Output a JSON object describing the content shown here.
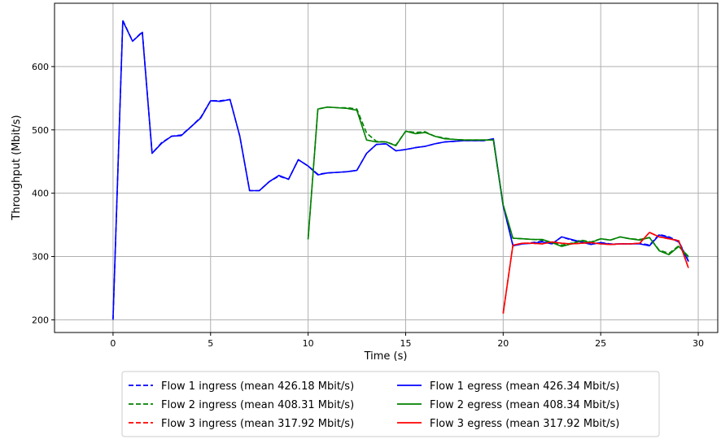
{
  "chart_data": {
    "type": "line",
    "title": "",
    "xlabel": "Time (s)",
    "ylabel": "Throughput (Mbit/s)",
    "xlim": [
      -3,
      31
    ],
    "ylim": [
      180,
      700
    ],
    "xticks": [
      0,
      5,
      10,
      15,
      20,
      25,
      30
    ],
    "yticks": [
      200,
      300,
      400,
      500,
      600
    ],
    "xtick_labels": [
      "0",
      "5",
      "10",
      "15",
      "20",
      "25",
      "30"
    ],
    "ytick_labels": [
      "200",
      "300",
      "400",
      "500",
      "600"
    ],
    "grid": true,
    "legend_placement": "below",
    "series": [
      {
        "name": "Flow 1 ingress (mean 426.18 Mbit/s)",
        "color": "#0000ff",
        "dashed": true,
        "x": [
          0,
          0.5,
          1.0,
          1.5,
          2.0,
          2.5,
          3.0,
          3.5,
          4.0,
          4.5,
          5.0,
          5.5,
          6.0,
          6.5,
          7.0,
          7.5,
          8.0,
          8.5,
          9.0,
          9.5,
          10.0,
          10.5,
          11.0,
          11.5,
          12.0,
          12.5,
          13.0,
          13.5,
          14.0,
          14.5,
          15.0,
          15.5,
          16.0,
          16.5,
          17.0,
          17.5,
          18.0,
          18.5,
          19.0,
          19.5,
          20.0,
          20.5,
          21.0,
          21.5,
          22.0,
          22.5,
          23.0,
          23.5,
          24.0,
          24.5,
          25.0,
          25.5,
          26.0,
          26.5,
          27.0,
          27.5,
          28.0,
          28.5,
          29.0,
          29.5
        ],
        "y": [
          200,
          673,
          640,
          655,
          463,
          480,
          490,
          492,
          505,
          520,
          546,
          546,
          548,
          490,
          404,
          404,
          418,
          427,
          422,
          453,
          443,
          430,
          432,
          433,
          434,
          436,
          463,
          477,
          478,
          467,
          469,
          472,
          474,
          478,
          481,
          482,
          483,
          483,
          483,
          485,
          380,
          318,
          320,
          322,
          324,
          320,
          331,
          326,
          323,
          320,
          322,
          320,
          320,
          320,
          321,
          318,
          335,
          331,
          324,
          293
        ]
      },
      {
        "name": "Flow 2 ingress (mean 408.31 Mbit/s)",
        "color": "#008000",
        "dashed": true,
        "x": [
          10.0,
          10.5,
          11.0,
          11.5,
          12.0,
          12.5,
          13.0,
          13.5,
          14.0,
          14.5,
          15.0,
          15.5,
          16.0,
          16.5,
          17.0,
          17.5,
          18.0,
          18.5,
          19.0,
          19.5,
          20.0,
          20.5,
          21.0,
          21.5,
          22.0,
          22.5,
          23.0,
          23.5,
          24.0,
          24.5,
          25.0,
          25.5,
          26.0,
          26.5,
          27.0,
          27.5,
          28.0,
          28.5,
          29.0,
          29.5
        ],
        "y": [
          328,
          533,
          536,
          535,
          535,
          533,
          495,
          482,
          481,
          476,
          498,
          496,
          497,
          490,
          487,
          485,
          484,
          484,
          484,
          484,
          381,
          329,
          328,
          327,
          326,
          322,
          318,
          321,
          326,
          323,
          328,
          326,
          331,
          328,
          327,
          330,
          310,
          305,
          317,
          300
        ]
      },
      {
        "name": "Flow 3 ingress (mean 317.92 Mbit/s)",
        "color": "#ff0000",
        "dashed": true,
        "x": [
          20.0,
          20.5,
          21.0,
          21.5,
          22.0,
          22.5,
          23.0,
          23.5,
          24.0,
          24.5,
          25.0,
          25.5,
          26.0,
          26.5,
          27.0,
          27.5,
          28.0,
          28.5,
          29.0,
          29.5
        ],
        "y": [
          210,
          318,
          321,
          321,
          320,
          323,
          321,
          320,
          321,
          322,
          320,
          319,
          320,
          320,
          321,
          338,
          331,
          328,
          325,
          282
        ]
      },
      {
        "name": "Flow 1 egress (mean 426.34 Mbit/s)",
        "color": "#0000ff",
        "dashed": false,
        "x": [
          0,
          0.5,
          1.0,
          1.5,
          2.0,
          2.5,
          3.0,
          3.5,
          4.0,
          4.5,
          5.0,
          5.5,
          6.0,
          6.5,
          7.0,
          7.5,
          8.0,
          8.5,
          9.0,
          9.5,
          10.0,
          10.5,
          11.0,
          11.5,
          12.0,
          12.5,
          13.0,
          13.5,
          14.0,
          14.5,
          15.0,
          15.5,
          16.0,
          16.5,
          17.0,
          17.5,
          18.0,
          18.5,
          19.0,
          19.5,
          20.0,
          20.5,
          21.0,
          21.5,
          22.0,
          22.5,
          23.0,
          23.5,
          24.0,
          24.5,
          25.0,
          25.5,
          26.0,
          26.5,
          27.0,
          27.5,
          28.0,
          28.5,
          29.0,
          29.5
        ],
        "y": [
          202,
          672,
          640,
          654,
          463,
          479,
          490,
          491,
          505,
          519,
          546,
          545,
          548,
          490,
          404,
          404,
          418,
          428,
          422,
          453,
          443,
          429,
          432,
          433,
          434,
          436,
          463,
          477,
          478,
          467,
          469,
          472,
          474,
          478,
          481,
          482,
          483,
          483,
          483,
          486,
          381,
          317,
          320,
          321,
          323,
          320,
          331,
          327,
          323,
          319,
          322,
          319,
          320,
          320,
          320,
          317,
          334,
          330,
          323,
          292
        ]
      },
      {
        "name": "Flow 2 egress (mean 408.34 Mbit/s)",
        "color": "#008000",
        "dashed": false,
        "x": [
          10.0,
          10.5,
          11.0,
          11.5,
          12.0,
          12.5,
          13.0,
          13.5,
          14.0,
          14.5,
          15.0,
          15.5,
          16.0,
          16.5,
          17.0,
          17.5,
          18.0,
          18.5,
          19.0,
          19.5,
          20.0,
          20.5,
          21.0,
          21.5,
          22.0,
          22.5,
          23.0,
          23.5,
          24.0,
          24.5,
          25.0,
          25.5,
          26.0,
          26.5,
          27.0,
          27.5,
          28.0,
          28.5,
          29.0,
          29.5
        ],
        "y": [
          327,
          533,
          536,
          535,
          534,
          531,
          484,
          481,
          481,
          475,
          498,
          494,
          496,
          490,
          486,
          485,
          484,
          484,
          484,
          484,
          382,
          329,
          328,
          327,
          327,
          322,
          316,
          320,
          325,
          322,
          328,
          326,
          331,
          328,
          326,
          330,
          309,
          303,
          316,
          299
        ]
      },
      {
        "name": "Flow 3 egress (mean 317.92 Mbit/s)",
        "color": "#ff0000",
        "dashed": false,
        "x": [
          20.0,
          20.5,
          21.0,
          21.5,
          22.0,
          22.5,
          23.0,
          23.5,
          24.0,
          24.5,
          25.0,
          25.5,
          26.0,
          26.5,
          27.0,
          27.5,
          28.0,
          28.5,
          29.0,
          29.5
        ],
        "y": [
          210,
          318,
          321,
          321,
          320,
          323,
          321,
          320,
          321,
          322,
          320,
          319,
          320,
          320,
          321,
          338,
          331,
          328,
          325,
          282
        ]
      }
    ]
  }
}
